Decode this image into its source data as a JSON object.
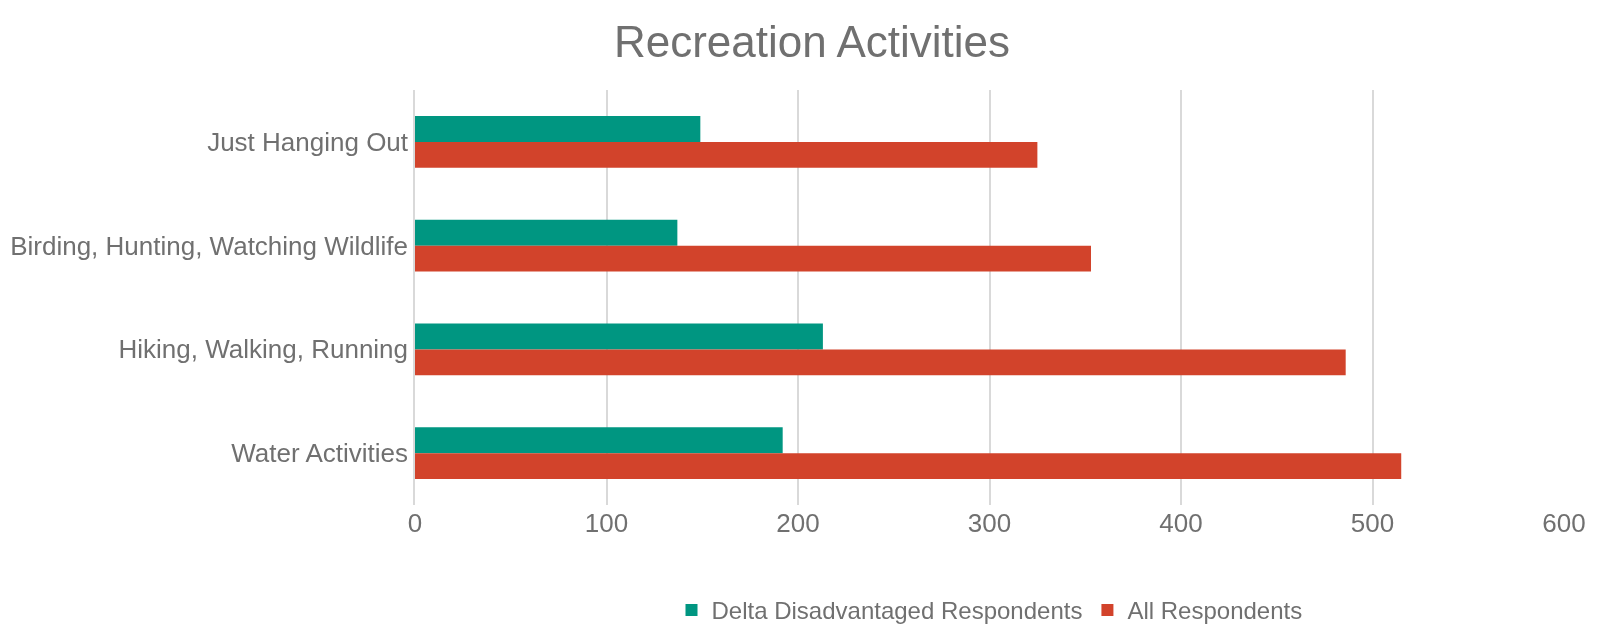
{
  "chart_data": {
    "type": "bar",
    "orientation": "horizontal",
    "title": "Recreation Activities",
    "categories": [
      "Just Hanging Out",
      "Birding, Hunting, Watching Wildlife",
      "Hiking, Walking, Running",
      "Water Activities"
    ],
    "series": [
      {
        "name": "Delta Disadvantaged Respondents",
        "color": "#009681",
        "values": [
          149,
          137,
          213,
          192
        ]
      },
      {
        "name": "All Respondents",
        "color": "#d2432b",
        "values": [
          325,
          353,
          486,
          515
        ]
      }
    ],
    "xlim": [
      0,
      600
    ],
    "xticks": [
      0,
      100,
      200,
      300,
      400,
      500,
      600
    ],
    "grid": "x",
    "legend": "bottom"
  }
}
